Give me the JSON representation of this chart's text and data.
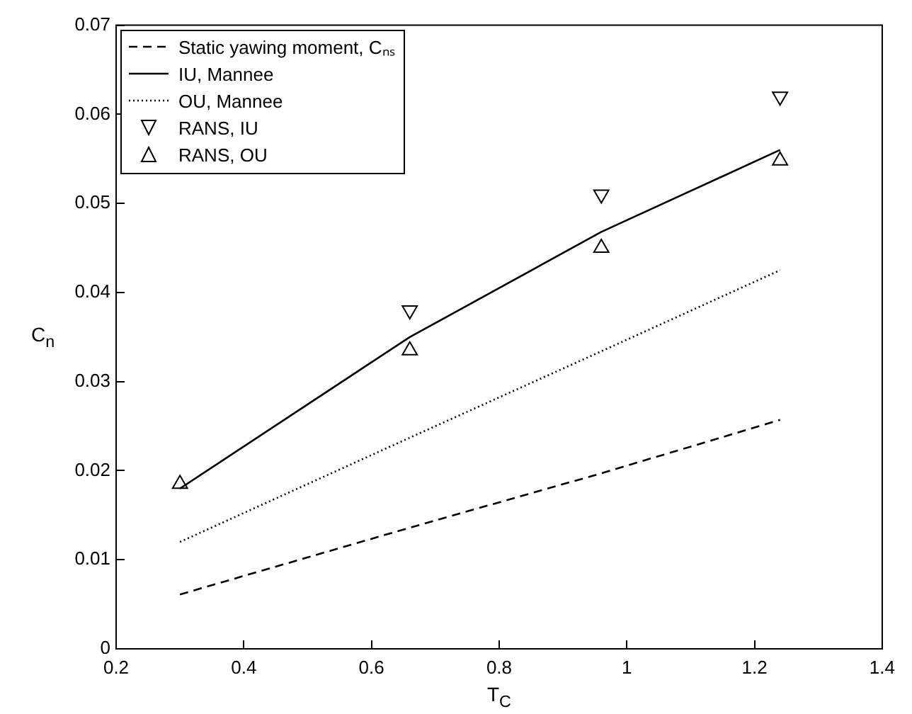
{
  "chart_data": {
    "type": "line",
    "xlabel": "T$_{C}$",
    "ylabel": "C$_{n}$",
    "x": [
      0.3,
      0.66,
      0.96,
      1.24
    ],
    "series": [
      {
        "name": "Static yawing moment, Cₙₛ",
        "color": "#000000",
        "values": [
          0.0061,
          0.0136,
          0.0197,
          0.0257
        ],
        "line_style": "dashed",
        "marker": "none"
      },
      {
        "name": "IU, Mannee",
        "color": "#000000",
        "values": [
          0.018,
          0.035,
          0.0468,
          0.056
        ],
        "line_style": "solid",
        "marker": "none"
      },
      {
        "name": "OU, Mannee",
        "color": "#000000",
        "values": [
          0.012,
          0.0237,
          0.0334,
          0.0425
        ],
        "line_style": "dotted",
        "marker": "none"
      },
      {
        "name": "RANS, IU",
        "color": "#000000",
        "type": "scatter",
        "values": [
          null,
          0.038,
          0.051,
          0.062
        ],
        "marker": "triangle_down"
      },
      {
        "name": "RANS, OU",
        "color": "#000000",
        "type": "scatter",
        "values": [
          0.0185,
          0.0335,
          0.045,
          0.0548
        ],
        "marker": "triangle"
      }
    ],
    "xlim": [
      0.2,
      1.4
    ],
    "xticks": [
      0.2,
      0.4,
      0.6,
      0.8,
      1,
      1.2,
      1.4
    ],
    "ylim": [
      0,
      0.07
    ],
    "yticks": [
      0,
      0.01,
      0.02,
      0.03,
      0.04,
      0.05,
      0.06,
      0.07
    ],
    "grid": false,
    "legend": "top left"
  }
}
